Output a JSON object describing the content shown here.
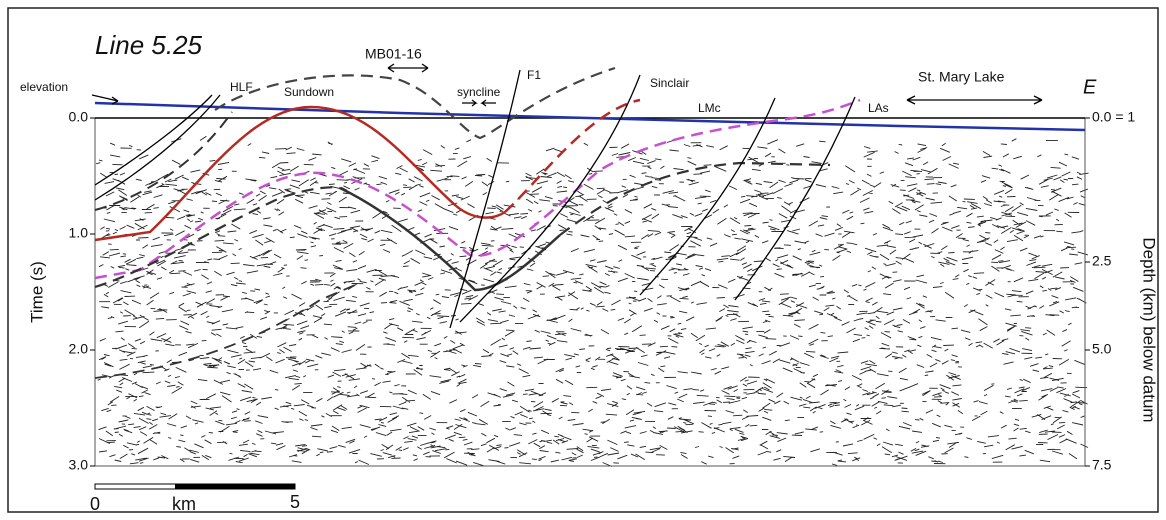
{
  "title": "Line 5.25",
  "labels": {
    "elevation": "elevation",
    "hlf": "HLF",
    "mb": "MB01-16",
    "sundown": "Sundown",
    "syncline": "syncline",
    "f1": "F1",
    "sinclair": "Sinclair",
    "lmc": "LMc",
    "las": "LAs",
    "lake": "St. Mary Lake"
  },
  "direction": "E",
  "y_axis": {
    "label": "Time (s)",
    "ticks": [
      "0.0",
      "1.0",
      "2.0",
      "3.0"
    ]
  },
  "y2_axis": {
    "label": "Depth (km) below datum",
    "ticks": [
      "0.0 = 1",
      "2.5",
      "5.0",
      "7.5"
    ]
  },
  "scale_bar": {
    "start": "0",
    "unit": "km",
    "end": "5"
  }
}
